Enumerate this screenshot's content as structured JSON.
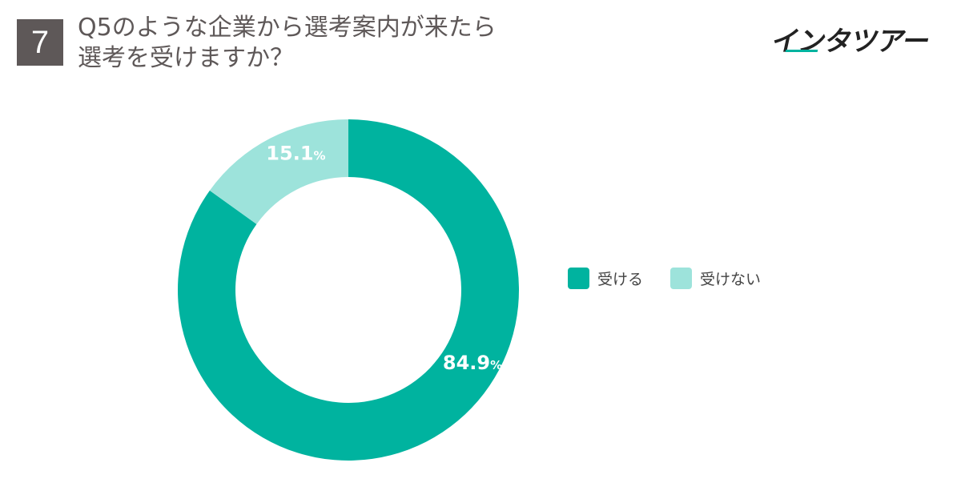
{
  "question_number": "7",
  "title_lines": [
    "Q5のような企業から選考案内が来たら",
    "選考を受けますか？"
  ],
  "brand": {
    "logo_text": "インタツアー",
    "accent": "#00b39f"
  },
  "colors": {
    "title_text": "#5e5858",
    "badge_bg": "#5e5858"
  },
  "chart_data": {
    "type": "pie",
    "donut": true,
    "slices": [
      {
        "label": "受ける",
        "value": 84.9,
        "display": "84.9",
        "unit": "%",
        "color": "#00b39f"
      },
      {
        "label": "受けない",
        "value": 15.1,
        "display": "15.1",
        "unit": "%",
        "color": "#9de3db"
      }
    ],
    "legend_position": "right"
  }
}
